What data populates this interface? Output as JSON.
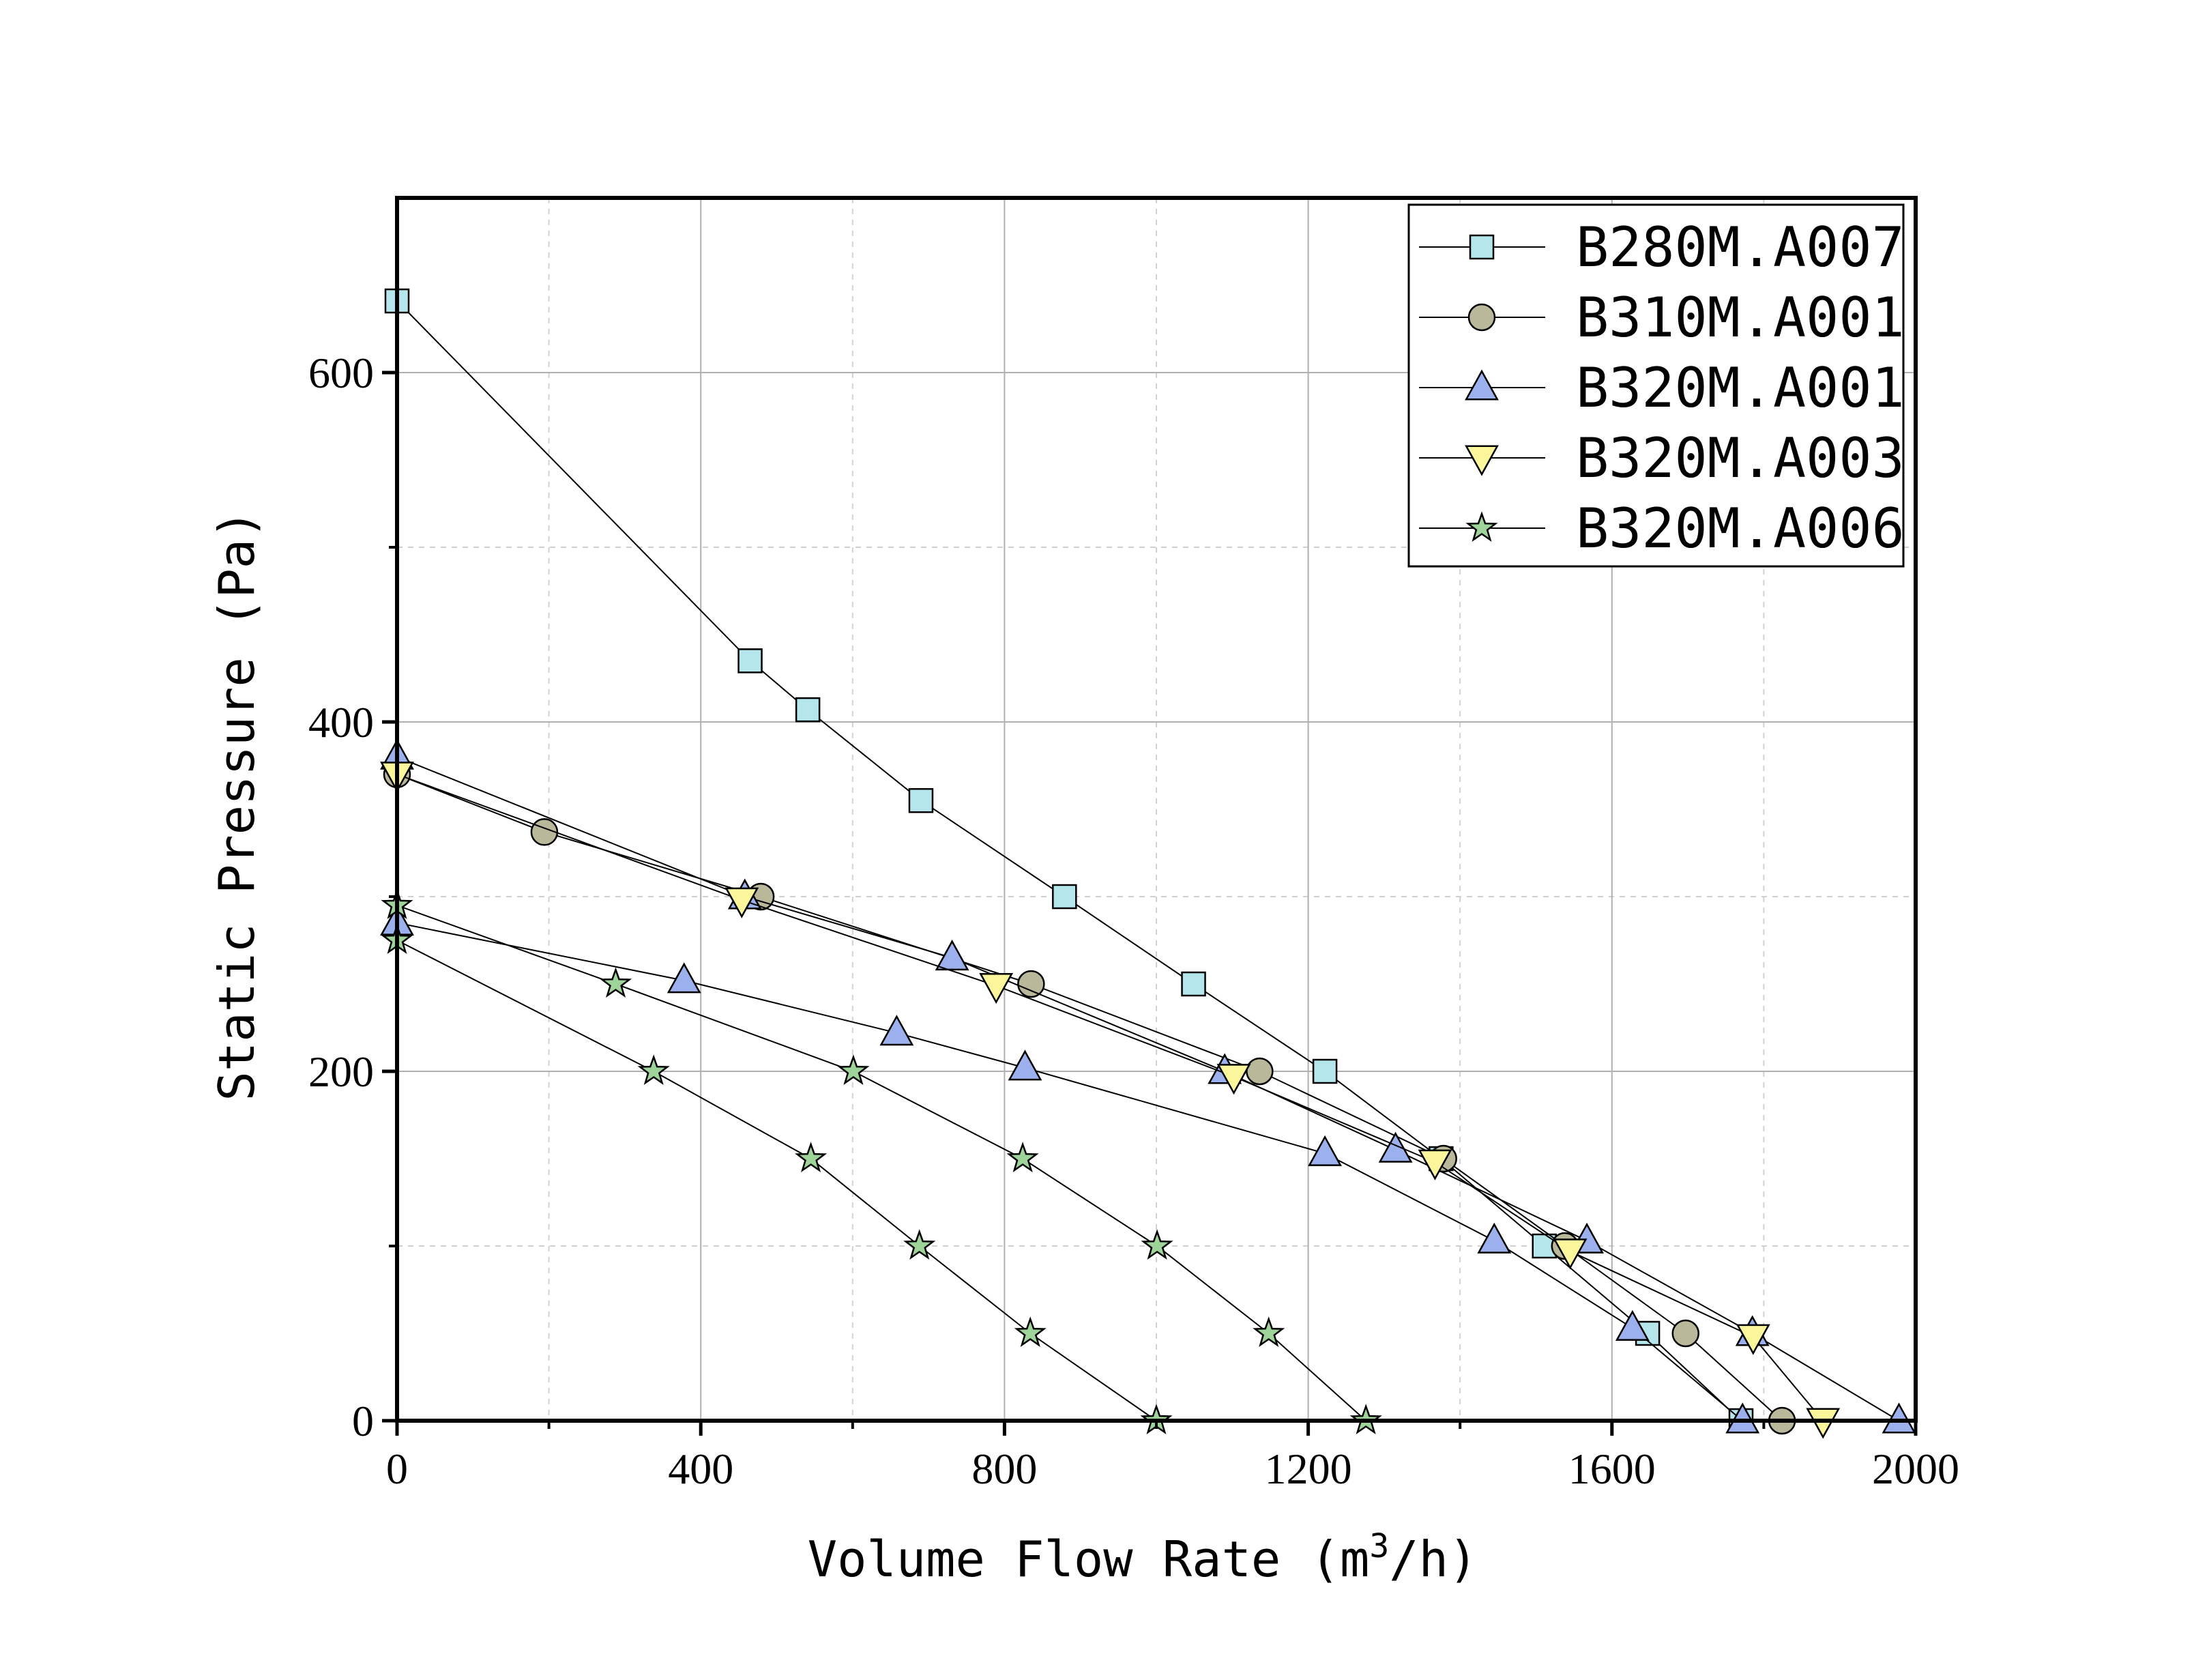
{
  "chart_data": {
    "type": "line",
    "xlabel": "Volume Flow Rate (m³/h)",
    "xlabel_main": "Volume Flow Rate (m",
    "xlabel_sup": "3",
    "xlabel_end": "/h)",
    "ylabel": "Static Pressure (Pa)",
    "xlim": [
      0,
      2000
    ],
    "ylim": [
      0,
      700
    ],
    "xticks": [
      0,
      400,
      800,
      1200,
      1600,
      2000
    ],
    "yticks": [
      0,
      200,
      400,
      600
    ],
    "x_minor_ticks": [
      200,
      600,
      1000,
      1400,
      1800
    ],
    "y_minor_ticks": [
      100,
      300,
      500
    ],
    "grid": true,
    "legend_position": "top-right",
    "series": [
      {
        "name": "B280M.A007",
        "marker": "square",
        "color": "#b4e6ec",
        "x": [
          0,
          465,
          541,
          690,
          879,
          1049,
          1222,
          1375,
          1511,
          1647,
          1770
        ],
        "y": [
          641,
          435,
          407,
          355,
          300,
          250,
          200,
          150,
          100,
          50,
          0
        ]
      },
      {
        "name": "B310M.A001",
        "marker": "circle",
        "color": "#b9b89a",
        "x": [
          0,
          194,
          479,
          835,
          1136,
          1378,
          1538,
          1697,
          1824
        ],
        "y": [
          370,
          337,
          300,
          250,
          200,
          150,
          100,
          50,
          0
        ]
      },
      {
        "name": "B320M.A001",
        "marker": "triangle-up",
        "color": "#9bb0ec",
        "x": [
          0,
          458,
          731,
          1090,
          1315,
          1567,
          1785,
          1978,
          0,
          378,
          658,
          827,
          1222,
          1445,
          1627,
          1772
        ],
        "y": [
          380,
          300,
          265,
          200,
          155,
          103,
          50,
          0,
          285,
          252,
          222,
          202,
          153,
          103,
          53,
          0
        ],
        "break_after_index": 7
      },
      {
        "name": "B320M.A003",
        "marker": "triangle-down",
        "color": "#fbf59c",
        "x": [
          0,
          454,
          789,
          1102,
          1367,
          1545,
          1786,
          1878
        ],
        "y": [
          370,
          298,
          249,
          197,
          148,
          97,
          48,
          0
        ]
      },
      {
        "name": "B320M.A006",
        "marker": "star",
        "color": "#9ed39a",
        "x": [
          0,
          338,
          545,
          688,
          834,
          1000,
          0,
          288,
          601,
          824,
          1001,
          1148,
          1276
        ],
        "y": [
          275,
          200,
          150,
          100,
          50,
          0,
          295,
          250,
          200,
          150,
          100,
          50,
          0
        ],
        "break_after_index": 5
      }
    ]
  }
}
